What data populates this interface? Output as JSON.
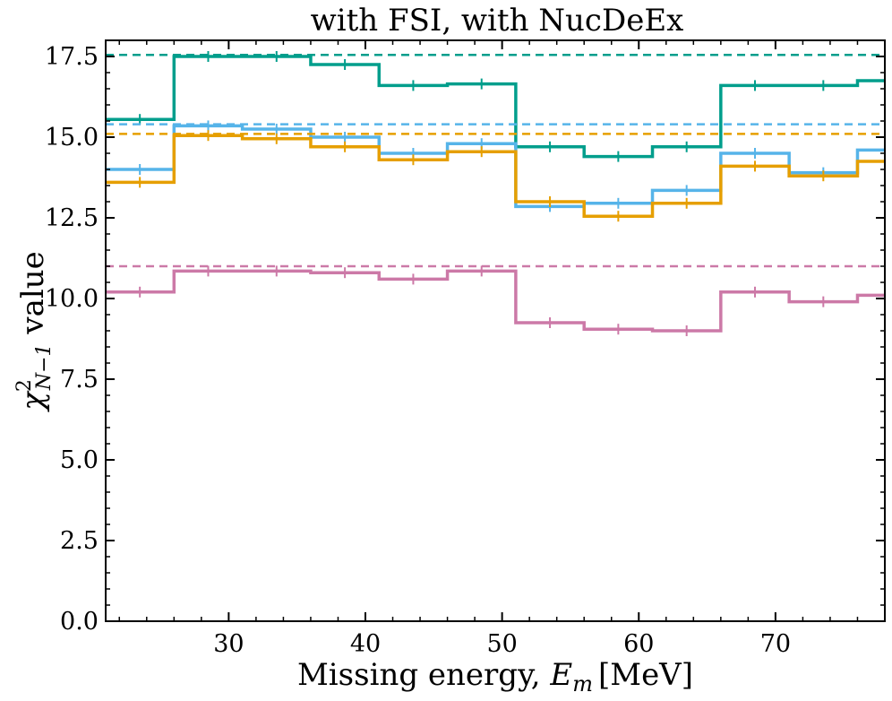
{
  "chart_data": {
    "type": "line",
    "style": "step",
    "title": "with FSI, with NucDeEx",
    "xlabel": "Missing energy, E_m [MeV]",
    "xlabel_prefix": "Missing energy, ",
    "xlabel_var": "E",
    "xlabel_sub": "m",
    "xlabel_unit": "[MeV]",
    "ylabel": "χ²_{N−1} value",
    "ylabel_chi": "χ",
    "ylabel_sup": "2",
    "ylabel_sub": "N−1",
    "ylabel_suffix": " value",
    "xlim": [
      21,
      78
    ],
    "ylim": [
      0,
      18
    ],
    "xticks": [
      30,
      40,
      50,
      60,
      70
    ],
    "xtick_labels": [
      "30",
      "40",
      "50",
      "60",
      "70"
    ],
    "yticks": [
      0,
      2.5,
      5,
      7.5,
      10,
      12.5,
      15,
      17.5
    ],
    "ytick_labels": [
      "0.0",
      "2.5",
      "5.0",
      "7.5",
      "10.0",
      "12.5",
      "15.0",
      "17.5"
    ],
    "bin_edges": [
      21,
      26,
      31,
      36,
      41,
      46,
      51,
      56,
      61,
      66,
      71,
      76,
      78
    ],
    "bin_centers": [
      23.5,
      28.5,
      33.5,
      38.5,
      43.5,
      48.5,
      53.5,
      58.5,
      63.5,
      68.5,
      73.5,
      78.5
    ],
    "series": [
      {
        "name": "green",
        "color": "#009E8C",
        "values": [
          15.55,
          17.5,
          17.5,
          17.25,
          16.6,
          16.65,
          14.7,
          14.4,
          14.7,
          16.6,
          16.6,
          16.75
        ],
        "reference": 17.55
      },
      {
        "name": "light blue",
        "color": "#56B4E9",
        "values": [
          14.0,
          15.35,
          15.25,
          15.0,
          14.5,
          14.8,
          12.85,
          12.95,
          13.35,
          14.5,
          13.9,
          14.6
        ],
        "reference": 15.4
      },
      {
        "name": "orange",
        "color": "#E69F00",
        "values": [
          13.6,
          15.05,
          14.95,
          14.7,
          14.3,
          14.55,
          13.0,
          12.55,
          12.95,
          14.1,
          13.8,
          14.25
        ],
        "reference": 15.1
      },
      {
        "name": "pink",
        "color": "#CC79A7",
        "values": [
          10.2,
          10.85,
          10.85,
          10.8,
          10.6,
          10.85,
          9.25,
          9.05,
          9.0,
          10.2,
          9.9,
          10.1
        ],
        "reference": 11.0
      }
    ]
  }
}
